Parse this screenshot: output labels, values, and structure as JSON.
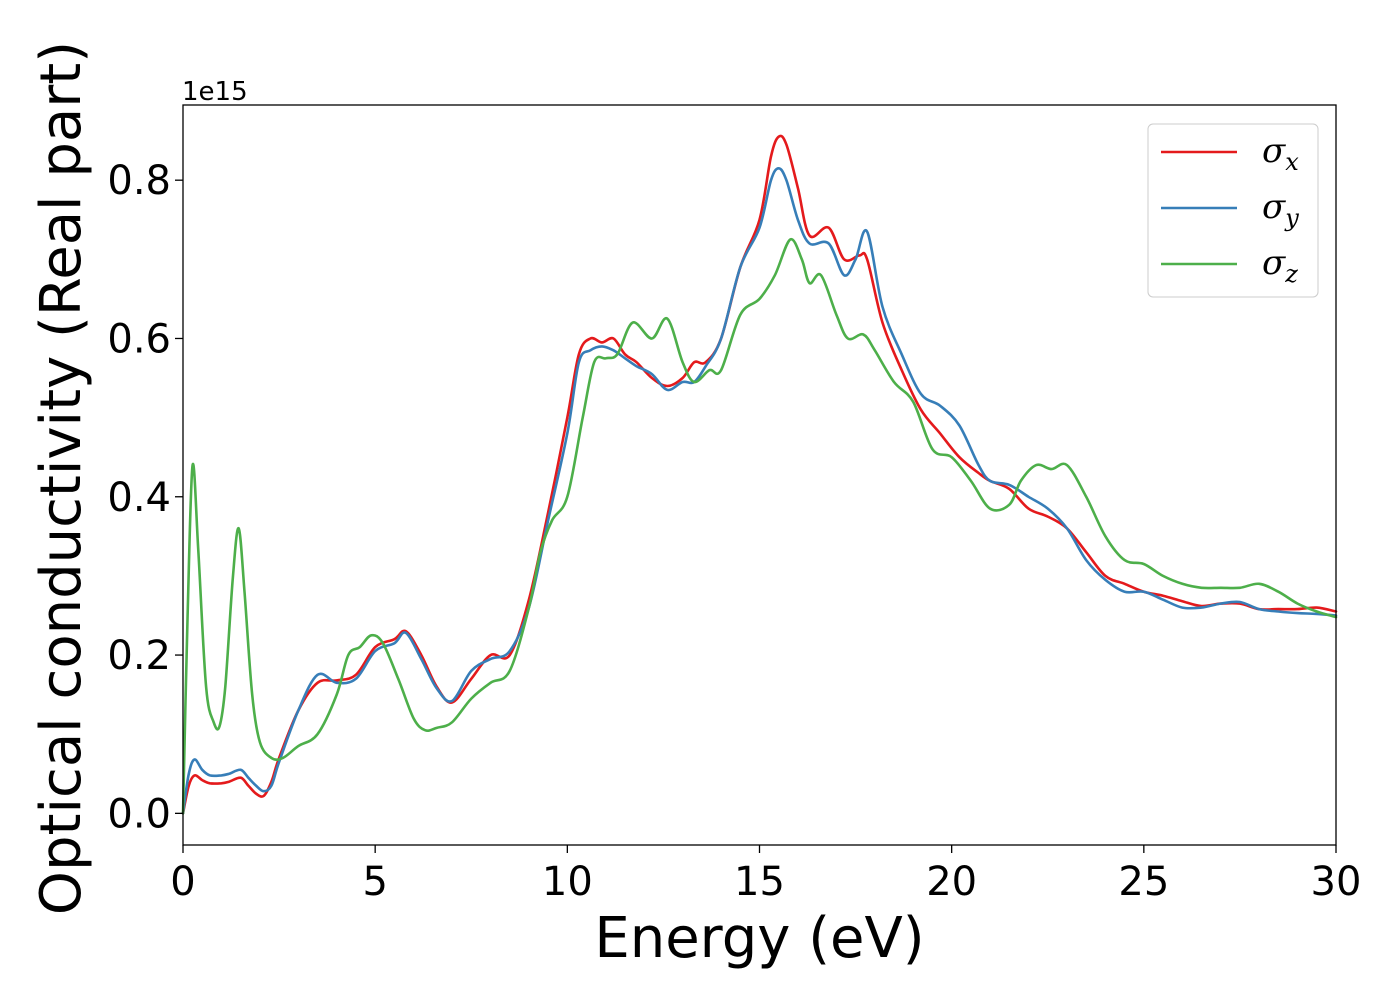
{
  "chart_data": {
    "type": "line",
    "xlabel": "Energy (eV)",
    "ylabel": "Optical conductivity (Real part)",
    "y_offset_label": "1e15",
    "xlim": [
      0,
      30
    ],
    "ylim": [
      -0.04,
      0.895
    ],
    "xticks": [
      0,
      5,
      10,
      15,
      20,
      25,
      30
    ],
    "xtick_labels": [
      "0",
      "5",
      "10",
      "15",
      "20",
      "25",
      "30"
    ],
    "yticks": [
      0.0,
      0.2,
      0.4,
      0.6,
      0.8
    ],
    "ytick_labels": [
      "0.0",
      "0.2",
      "0.4",
      "0.6",
      "0.8"
    ],
    "grid": false,
    "legend_position": "top-right",
    "series": [
      {
        "name": "σx",
        "symbol": "σ",
        "subscript": "x",
        "color": "#e41a1c",
        "x": [
          0,
          0.15,
          0.3,
          0.5,
          0.7,
          1.0,
          1.2,
          1.5,
          1.7,
          1.9,
          2.1,
          2.3,
          2.5,
          3.0,
          3.5,
          4.0,
          4.5,
          5.0,
          5.5,
          5.8,
          6.2,
          6.6,
          7.0,
          7.5,
          8.0,
          8.5,
          9.0,
          9.5,
          10.0,
          10.3,
          10.6,
          10.9,
          11.2,
          11.5,
          11.8,
          12.2,
          12.6,
          13.0,
          13.3,
          13.6,
          14.0,
          14.5,
          15.0,
          15.3,
          15.5,
          15.7,
          16.0,
          16.3,
          16.8,
          17.2,
          17.6,
          17.8,
          18.2,
          18.7,
          19.2,
          19.7,
          20.2,
          20.7,
          21.0,
          21.5,
          22.0,
          22.5,
          23.0,
          23.5,
          24.0,
          24.5,
          25.0,
          25.5,
          26.0,
          26.5,
          27.0,
          27.5,
          28.0,
          28.5,
          29.0,
          29.5,
          30.0
        ],
        "y": [
          0.0,
          0.035,
          0.048,
          0.042,
          0.038,
          0.038,
          0.04,
          0.045,
          0.035,
          0.025,
          0.022,
          0.04,
          0.07,
          0.13,
          0.165,
          0.168,
          0.175,
          0.21,
          0.22,
          0.23,
          0.2,
          0.16,
          0.14,
          0.17,
          0.2,
          0.2,
          0.27,
          0.38,
          0.5,
          0.58,
          0.6,
          0.595,
          0.6,
          0.58,
          0.57,
          0.55,
          0.54,
          0.55,
          0.57,
          0.57,
          0.6,
          0.69,
          0.75,
          0.83,
          0.855,
          0.845,
          0.79,
          0.73,
          0.74,
          0.7,
          0.705,
          0.7,
          0.62,
          0.56,
          0.51,
          0.48,
          0.45,
          0.43,
          0.42,
          0.41,
          0.385,
          0.375,
          0.36,
          0.33,
          0.3,
          0.29,
          0.28,
          0.275,
          0.268,
          0.262,
          0.265,
          0.265,
          0.258,
          0.258,
          0.258,
          0.26,
          0.255
        ]
      },
      {
        "name": "σy",
        "symbol": "σ",
        "subscript": "y",
        "color": "#377eb8",
        "x": [
          0,
          0.15,
          0.3,
          0.5,
          0.7,
          1.0,
          1.2,
          1.5,
          1.7,
          1.9,
          2.1,
          2.3,
          2.5,
          3.0,
          3.5,
          4.0,
          4.5,
          5.0,
          5.5,
          5.8,
          6.2,
          6.6,
          7.0,
          7.5,
          8.0,
          8.5,
          9.0,
          9.5,
          10.0,
          10.3,
          10.6,
          10.9,
          11.2,
          11.5,
          11.8,
          12.2,
          12.6,
          13.0,
          13.3,
          13.6,
          14.0,
          14.5,
          15.0,
          15.3,
          15.5,
          15.7,
          16.0,
          16.3,
          16.8,
          17.2,
          17.5,
          17.8,
          18.2,
          18.7,
          19.2,
          19.7,
          20.2,
          20.7,
          21.0,
          21.5,
          22.0,
          22.5,
          23.0,
          23.5,
          24.0,
          24.5,
          25.0,
          25.5,
          26.0,
          26.5,
          27.0,
          27.5,
          28.0,
          28.5,
          29.0,
          29.5,
          30.0
        ],
        "y": [
          0.0,
          0.05,
          0.068,
          0.055,
          0.048,
          0.048,
          0.05,
          0.055,
          0.045,
          0.035,
          0.028,
          0.035,
          0.065,
          0.13,
          0.175,
          0.165,
          0.17,
          0.205,
          0.215,
          0.228,
          0.195,
          0.158,
          0.142,
          0.18,
          0.195,
          0.205,
          0.26,
          0.37,
          0.48,
          0.57,
          0.585,
          0.59,
          0.585,
          0.575,
          0.565,
          0.555,
          0.535,
          0.545,
          0.545,
          0.565,
          0.6,
          0.69,
          0.74,
          0.8,
          0.815,
          0.8,
          0.75,
          0.72,
          0.72,
          0.68,
          0.7,
          0.735,
          0.64,
          0.58,
          0.53,
          0.515,
          0.49,
          0.44,
          0.42,
          0.415,
          0.4,
          0.385,
          0.36,
          0.32,
          0.295,
          0.28,
          0.28,
          0.27,
          0.26,
          0.26,
          0.265,
          0.267,
          0.258,
          0.255,
          0.253,
          0.252,
          0.25
        ]
      },
      {
        "name": "σz",
        "symbol": "σ",
        "subscript": "z",
        "color": "#4daf4a",
        "x": [
          0,
          0.12,
          0.25,
          0.4,
          0.6,
          0.8,
          0.95,
          1.1,
          1.3,
          1.45,
          1.6,
          1.8,
          2.0,
          2.3,
          2.6,
          3.0,
          3.5,
          4.0,
          4.3,
          4.6,
          4.9,
          5.2,
          5.6,
          6.0,
          6.3,
          6.6,
          7.0,
          7.5,
          8.0,
          8.5,
          9.0,
          9.3,
          9.6,
          10.0,
          10.4,
          10.7,
          11.0,
          11.3,
          11.7,
          12.2,
          12.6,
          13.0,
          13.3,
          13.7,
          14.0,
          14.5,
          15.0,
          15.4,
          15.8,
          16.1,
          16.3,
          16.6,
          17.0,
          17.3,
          17.7,
          18.0,
          18.5,
          19.0,
          19.5,
          20.0,
          20.5,
          21.0,
          21.5,
          21.8,
          22.2,
          22.6,
          23.0,
          23.5,
          24.0,
          24.5,
          25.0,
          25.5,
          26.0,
          26.5,
          27.0,
          27.5,
          28.0,
          28.5,
          29.0,
          29.5,
          30.0
        ],
        "y": [
          0.0,
          0.25,
          0.44,
          0.33,
          0.16,
          0.115,
          0.11,
          0.16,
          0.3,
          0.36,
          0.28,
          0.15,
          0.09,
          0.07,
          0.07,
          0.085,
          0.1,
          0.15,
          0.2,
          0.21,
          0.225,
          0.215,
          0.17,
          0.12,
          0.105,
          0.108,
          0.115,
          0.145,
          0.165,
          0.18,
          0.26,
          0.33,
          0.37,
          0.4,
          0.5,
          0.57,
          0.575,
          0.58,
          0.62,
          0.6,
          0.625,
          0.57,
          0.545,
          0.56,
          0.56,
          0.63,
          0.65,
          0.68,
          0.725,
          0.7,
          0.67,
          0.68,
          0.63,
          0.6,
          0.605,
          0.585,
          0.545,
          0.52,
          0.46,
          0.45,
          0.42,
          0.385,
          0.39,
          0.42,
          0.44,
          0.435,
          0.44,
          0.4,
          0.35,
          0.32,
          0.315,
          0.3,
          0.29,
          0.285,
          0.285,
          0.285,
          0.29,
          0.28,
          0.265,
          0.255,
          0.248
        ]
      }
    ]
  }
}
